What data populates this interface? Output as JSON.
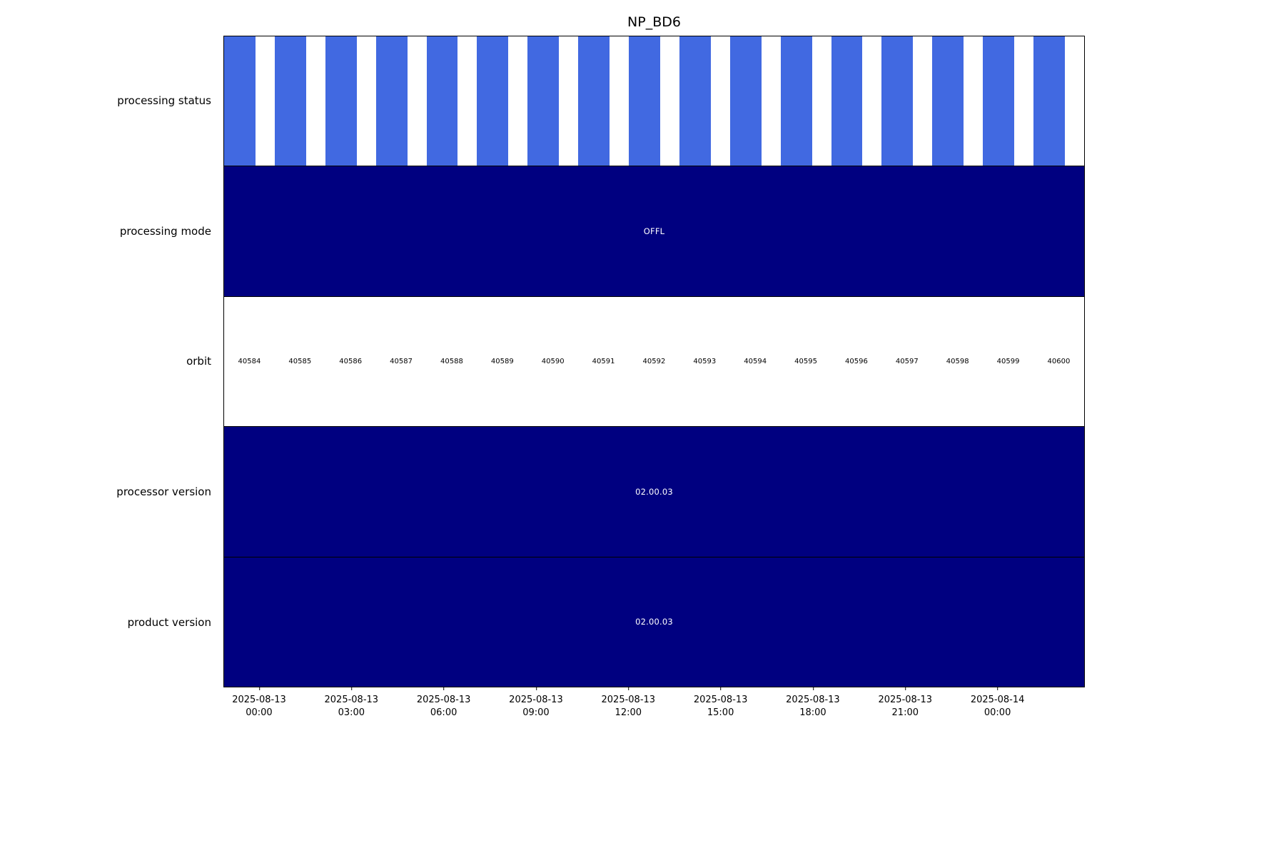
{
  "chart_data": {
    "type": "timeline",
    "title": "NP_BD6",
    "colors": {
      "status_blue": "#4169e1",
      "navy": "#000080",
      "background": "#ffffff",
      "text": "#000000"
    },
    "legend": "none",
    "grid": false,
    "x_ticks": [
      {
        "line1": "2025-08-13",
        "line2": "00:00"
      },
      {
        "line1": "2025-08-13",
        "line2": "03:00"
      },
      {
        "line1": "2025-08-13",
        "line2": "06:00"
      },
      {
        "line1": "2025-08-13",
        "line2": "09:00"
      },
      {
        "line1": "2025-08-13",
        "line2": "12:00"
      },
      {
        "line1": "2025-08-13",
        "line2": "15:00"
      },
      {
        "line1": "2025-08-13",
        "line2": "18:00"
      },
      {
        "line1": "2025-08-13",
        "line2": "21:00"
      },
      {
        "line1": "2025-08-14",
        "line2": "00:00"
      }
    ],
    "rows": [
      {
        "label": "processing status",
        "type": "striped",
        "color": "#4169e1",
        "segment_count": 17,
        "fill_fraction": 0.62
      },
      {
        "label": "processing mode",
        "type": "solid",
        "color": "#000080",
        "value": "OFFL"
      },
      {
        "label": "orbit",
        "type": "cells",
        "color": "#ffffff",
        "values": [
          40584,
          40585,
          40586,
          40587,
          40588,
          40589,
          40590,
          40591,
          40592,
          40593,
          40594,
          40595,
          40596,
          40597,
          40598,
          40599,
          40600
        ]
      },
      {
        "label": "processor version",
        "type": "solid",
        "color": "#000080",
        "value": "02.00.03"
      },
      {
        "label": "product version",
        "type": "solid",
        "color": "#000080",
        "value": "02.00.03"
      }
    ]
  }
}
